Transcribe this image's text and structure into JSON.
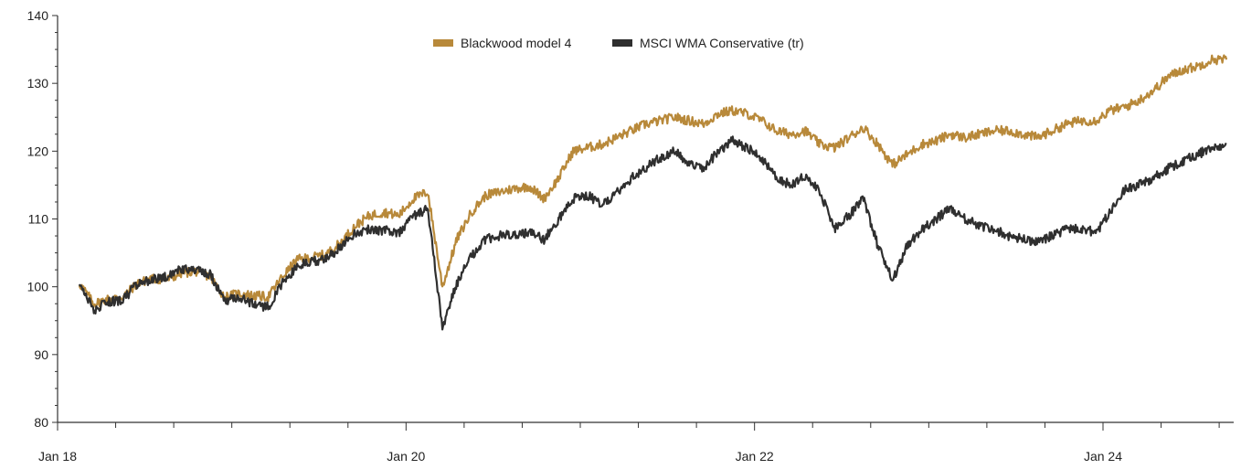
{
  "chart_data": {
    "type": "line",
    "title": "",
    "xlabel": "",
    "ylabel": "",
    "ylim": [
      80,
      140
    ],
    "yticks": [
      80,
      90,
      100,
      110,
      120,
      130,
      140
    ],
    "xlim": [
      "2018-01",
      "2024-09"
    ],
    "xtick_labels": [
      {
        "date": "2018-01",
        "label": "Jan 18"
      },
      {
        "date": "2020-01",
        "label": "Jan 20"
      },
      {
        "date": "2022-01",
        "label": "Jan 22"
      },
      {
        "date": "2024-01",
        "label": "Jan 24"
      }
    ],
    "minor_ticks_every_months": 4,
    "grid": false,
    "legend_position": "top-center",
    "series": [
      {
        "name": "Blackwood model 4",
        "color": "#b8893a",
        "x": [
          "2018-02",
          "2018-03",
          "2018-04",
          "2018-05",
          "2018-06",
          "2018-07",
          "2018-08",
          "2018-09",
          "2018-10",
          "2018-11",
          "2018-12",
          "2019-01",
          "2019-02",
          "2019-03",
          "2019-04",
          "2019-05",
          "2019-06",
          "2019-07",
          "2019-08",
          "2019-09",
          "2019-10",
          "2019-11",
          "2019-12",
          "2020-01",
          "2020-02",
          "2020-03",
          "2020-04",
          "2020-05",
          "2020-06",
          "2020-07",
          "2020-08",
          "2020-09",
          "2020-10",
          "2020-11",
          "2020-12",
          "2021-01",
          "2021-02",
          "2021-03",
          "2021-04",
          "2021-05",
          "2021-06",
          "2021-07",
          "2021-08",
          "2021-09",
          "2021-10",
          "2021-11",
          "2021-12",
          "2022-01",
          "2022-02",
          "2022-03",
          "2022-04",
          "2022-05",
          "2022-06",
          "2022-07",
          "2022-08",
          "2022-09",
          "2022-10",
          "2022-11",
          "2022-12",
          "2023-01",
          "2023-02",
          "2023-03",
          "2023-04",
          "2023-05",
          "2023-06",
          "2023-07",
          "2023-08",
          "2023-09",
          "2023-10",
          "2023-11",
          "2023-12",
          "2024-01",
          "2024-02",
          "2024-03",
          "2024-04",
          "2024-05",
          "2024-06",
          "2024-07",
          "2024-08",
          "2024-09"
        ],
        "values": [
          100.5,
          97.5,
          98.2,
          98.5,
          100.5,
          101.2,
          101.0,
          102.0,
          102.3,
          101.5,
          98.5,
          99.0,
          98.7,
          98.5,
          101.5,
          104.0,
          104.3,
          104.8,
          106.5,
          109.0,
          110.5,
          111.0,
          110.5,
          113.0,
          114.0,
          100.0,
          107.0,
          111.0,
          113.5,
          114.0,
          114.5,
          114.8,
          113.0,
          116.0,
          120.0,
          120.5,
          121.0,
          122.0,
          123.0,
          124.0,
          124.5,
          125.0,
          124.5,
          124.0,
          125.5,
          126.0,
          125.5,
          124.5,
          123.0,
          122.5,
          123.0,
          121.0,
          120.5,
          122.0,
          123.5,
          121.0,
          118.0,
          119.5,
          121.0,
          121.5,
          122.5,
          122.0,
          122.5,
          123.0,
          123.0,
          122.5,
          122.0,
          123.0,
          124.0,
          124.5,
          124.5,
          126.0,
          126.5,
          127.5,
          129.0,
          131.0,
          132.0,
          132.5,
          133.5,
          133.5
        ]
      },
      {
        "name": "MSCI WMA Conservative (tr)",
        "color": "#2f2f2f",
        "x": [
          "2018-02",
          "2018-03",
          "2018-04",
          "2018-05",
          "2018-06",
          "2018-07",
          "2018-08",
          "2018-09",
          "2018-10",
          "2018-11",
          "2018-12",
          "2019-01",
          "2019-02",
          "2019-03",
          "2019-04",
          "2019-05",
          "2019-06",
          "2019-07",
          "2019-08",
          "2019-09",
          "2019-10",
          "2019-11",
          "2019-12",
          "2020-01",
          "2020-02",
          "2020-03",
          "2020-04",
          "2020-05",
          "2020-06",
          "2020-07",
          "2020-08",
          "2020-09",
          "2020-10",
          "2020-11",
          "2020-12",
          "2021-01",
          "2021-02",
          "2021-03",
          "2021-04",
          "2021-05",
          "2021-06",
          "2021-07",
          "2021-08",
          "2021-09",
          "2021-10",
          "2021-11",
          "2021-12",
          "2022-01",
          "2022-02",
          "2022-03",
          "2022-04",
          "2022-05",
          "2022-06",
          "2022-07",
          "2022-08",
          "2022-09",
          "2022-10",
          "2022-11",
          "2022-12",
          "2023-01",
          "2023-02",
          "2023-03",
          "2023-04",
          "2023-05",
          "2023-06",
          "2023-07",
          "2023-08",
          "2023-09",
          "2023-10",
          "2023-11",
          "2023-12",
          "2024-01",
          "2024-02",
          "2024-03",
          "2024-04",
          "2024-05",
          "2024-06",
          "2024-07",
          "2024-08",
          "2024-09"
        ],
        "values": [
          100.5,
          96.5,
          97.8,
          98.0,
          100.5,
          101.0,
          101.5,
          102.5,
          102.5,
          101.8,
          98.0,
          98.5,
          97.5,
          97.0,
          100.5,
          103.0,
          103.8,
          104.0,
          106.0,
          108.0,
          108.5,
          108.3,
          108.0,
          110.5,
          111.5,
          94.0,
          100.5,
          104.5,
          107.0,
          107.5,
          107.8,
          108.0,
          107.0,
          110.0,
          113.0,
          113.5,
          112.0,
          114.0,
          116.0,
          117.5,
          119.0,
          120.0,
          118.0,
          117.5,
          120.0,
          121.5,
          120.5,
          119.0,
          116.0,
          115.0,
          116.5,
          114.0,
          108.5,
          110.5,
          113.0,
          106.0,
          101.0,
          106.0,
          108.5,
          110.0,
          111.5,
          110.0,
          109.0,
          108.5,
          107.5,
          107.0,
          106.5,
          107.5,
          108.5,
          108.5,
          108.0,
          111.0,
          114.5,
          115.0,
          116.0,
          117.5,
          118.5,
          119.5,
          120.5,
          121.0
        ]
      }
    ]
  }
}
